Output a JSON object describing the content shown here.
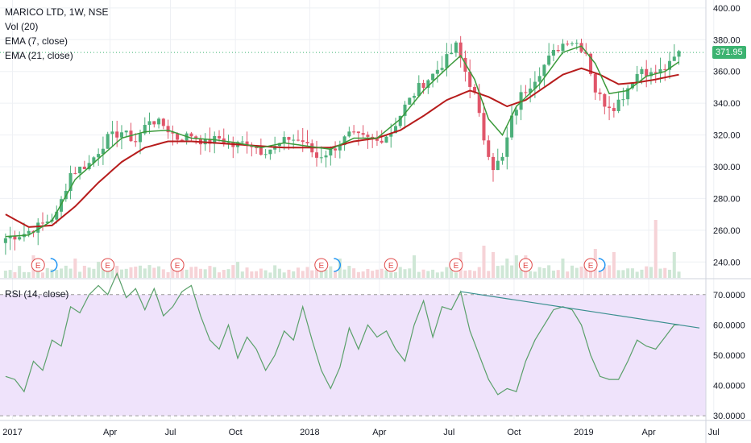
{
  "legend": {
    "symbol": "MARICO LTD, 1W, NSE",
    "vol": "Vol (20)",
    "ema7": "EMA (7, close)",
    "ema21": "EMA (21, close)"
  },
  "rsi_label": "RSI (14, close)",
  "last_price": "371.95",
  "colors": {
    "up": "#4caf7a",
    "down": "#e0566a",
    "ema7": "#3a9a3a",
    "ema21": "#b71c1c",
    "rsi_line": "#5aa06a",
    "rsi_band": "#efe3fb",
    "trendline": "#3a8f8f",
    "vol_up": "#cfe7d6",
    "vol_down": "#f6d3d7",
    "earnings": "#e04a4a",
    "dividend": "#2196f3",
    "last_line": "#3cb371"
  },
  "earnings_marker": "E",
  "chart_data": [
    {
      "type": "candlestick",
      "title": "MARICO LTD, 1W, NSE",
      "y_ticks": [
        "400.00",
        "380.00",
        "360.00",
        "340.00",
        "320.00",
        "300.00",
        "280.00",
        "260.00",
        "240.00"
      ],
      "ylim": [
        230,
        405
      ],
      "x_ticks": [
        "2017",
        "Apr",
        "Jul",
        "Oct",
        "2018",
        "Apr",
        "Jul",
        "Oct",
        "2019",
        "Apr",
        "Jul"
      ],
      "series": [
        {
          "name": "EMA (7, close)",
          "kind": "line"
        },
        {
          "name": "EMA (21, close)",
          "kind": "line"
        }
      ],
      "last_price": 371.95,
      "anchors_close": [
        [
          0,
          255
        ],
        [
          4,
          258
        ],
        [
          8,
          264
        ],
        [
          11,
          270
        ],
        [
          14,
          296
        ],
        [
          18,
          302
        ],
        [
          22,
          318
        ],
        [
          25,
          322
        ],
        [
          28,
          316
        ],
        [
          31,
          330
        ],
        [
          34,
          326
        ],
        [
          37,
          318
        ],
        [
          40,
          320
        ],
        [
          43,
          315
        ],
        [
          46,
          318
        ],
        [
          49,
          313
        ],
        [
          52,
          316
        ],
        [
          55,
          310
        ],
        [
          58,
          312
        ],
        [
          61,
          318
        ],
        [
          64,
          316
        ],
        [
          67,
          306
        ],
        [
          70,
          310
        ],
        [
          74,
          320
        ],
        [
          77,
          318
        ],
        [
          80,
          316
        ],
        [
          83,
          322
        ],
        [
          86,
          338
        ],
        [
          89,
          350
        ],
        [
          92,
          358
        ],
        [
          95,
          368
        ],
        [
          97,
          376
        ],
        [
          99,
          360
        ],
        [
          101,
          345
        ],
        [
          103,
          318
        ],
        [
          105,
          300
        ],
        [
          107,
          305
        ],
        [
          109,
          330
        ],
        [
          111,
          345
        ],
        [
          113,
          352
        ],
        [
          115,
          360
        ],
        [
          117,
          368
        ],
        [
          119,
          375
        ],
        [
          121,
          380
        ],
        [
          123,
          378
        ],
        [
          125,
          372
        ],
        [
          127,
          348
        ],
        [
          129,
          340
        ],
        [
          131,
          338
        ],
        [
          133,
          345
        ],
        [
          135,
          355
        ],
        [
          137,
          362
        ],
        [
          139,
          358
        ],
        [
          141,
          360
        ],
        [
          143,
          364
        ],
        [
          145,
          372
        ]
      ],
      "anchors_ema7": [
        [
          0,
          256
        ],
        [
          5,
          257
        ],
        [
          10,
          266
        ],
        [
          15,
          292
        ],
        [
          20,
          305
        ],
        [
          25,
          318
        ],
        [
          30,
          322
        ],
        [
          35,
          323
        ],
        [
          40,
          318
        ],
        [
          45,
          317
        ],
        [
          50,
          315
        ],
        [
          55,
          312
        ],
        [
          60,
          315
        ],
        [
          65,
          313
        ],
        [
          70,
          311
        ],
        [
          75,
          318
        ],
        [
          80,
          318
        ],
        [
          85,
          330
        ],
        [
          90,
          348
        ],
        [
          95,
          362
        ],
        [
          98,
          370
        ],
        [
          101,
          355
        ],
        [
          104,
          330
        ],
        [
          107,
          320
        ],
        [
          110,
          338
        ],
        [
          115,
          352
        ],
        [
          120,
          372
        ],
        [
          124,
          376
        ],
        [
          127,
          365
        ],
        [
          130,
          346
        ],
        [
          134,
          348
        ],
        [
          138,
          357
        ],
        [
          142,
          360
        ],
        [
          145,
          366
        ]
      ],
      "anchors_ema21": [
        [
          0,
          270
        ],
        [
          5,
          262
        ],
        [
          10,
          263
        ],
        [
          15,
          275
        ],
        [
          20,
          290
        ],
        [
          25,
          303
        ],
        [
          30,
          312
        ],
        [
          35,
          316
        ],
        [
          40,
          316
        ],
        [
          45,
          315
        ],
        [
          50,
          314
        ],
        [
          55,
          313
        ],
        [
          60,
          312
        ],
        [
          65,
          312
        ],
        [
          70,
          312
        ],
        [
          75,
          316
        ],
        [
          80,
          318
        ],
        [
          85,
          323
        ],
        [
          90,
          332
        ],
        [
          95,
          342
        ],
        [
          100,
          348
        ],
        [
          104,
          344
        ],
        [
          108,
          338
        ],
        [
          112,
          342
        ],
        [
          116,
          350
        ],
        [
          120,
          358
        ],
        [
          124,
          362
        ],
        [
          128,
          358
        ],
        [
          132,
          352
        ],
        [
          136,
          353
        ],
        [
          140,
          355
        ],
        [
          145,
          358
        ]
      ],
      "volume_spikes": [
        [
          6,
          0.35
        ],
        [
          15,
          0.3
        ],
        [
          20,
          0.25
        ],
        [
          50,
          0.25
        ],
        [
          72,
          0.3
        ],
        [
          88,
          0.35
        ],
        [
          98,
          0.4
        ],
        [
          103,
          0.5
        ],
        [
          105,
          0.4
        ],
        [
          108,
          0.3
        ],
        [
          110,
          0.35
        ],
        [
          112,
          0.35
        ],
        [
          120,
          0.3
        ],
        [
          127,
          0.45
        ],
        [
          131,
          0.4
        ],
        [
          140,
          0.9
        ],
        [
          144,
          0.4
        ]
      ],
      "earnings_events": [
        7,
        22,
        37,
        68,
        83,
        97,
        112,
        126
      ],
      "dividend_events": [
        9,
        70,
        127
      ]
    },
    {
      "type": "line",
      "title": "RSI (14, close)",
      "y_ticks": [
        "70.0000",
        "60.0000",
        "50.0000",
        "40.0000",
        "30.0000"
      ],
      "ylim": [
        29,
        75
      ],
      "band": [
        30,
        70
      ],
      "rsi_anchors": [
        [
          0,
          43
        ],
        [
          2,
          42
        ],
        [
          4,
          38
        ],
        [
          6,
          48
        ],
        [
          8,
          45
        ],
        [
          10,
          55
        ],
        [
          12,
          53
        ],
        [
          14,
          66
        ],
        [
          16,
          64
        ],
        [
          18,
          70
        ],
        [
          20,
          73
        ],
        [
          22,
          70
        ],
        [
          24,
          77
        ],
        [
          26,
          69
        ],
        [
          28,
          72
        ],
        [
          30,
          65
        ],
        [
          32,
          72
        ],
        [
          34,
          63
        ],
        [
          36,
          66
        ],
        [
          38,
          71
        ],
        [
          40,
          73
        ],
        [
          42,
          63
        ],
        [
          44,
          55
        ],
        [
          46,
          52
        ],
        [
          48,
          60
        ],
        [
          50,
          49
        ],
        [
          52,
          56
        ],
        [
          54,
          52
        ],
        [
          56,
          45
        ],
        [
          58,
          50
        ],
        [
          60,
          58
        ],
        [
          62,
          55
        ],
        [
          64,
          66
        ],
        [
          66,
          55
        ],
        [
          68,
          45
        ],
        [
          70,
          39
        ],
        [
          72,
          46
        ],
        [
          74,
          59
        ],
        [
          76,
          52
        ],
        [
          78,
          60
        ],
        [
          80,
          56
        ],
        [
          82,
          58
        ],
        [
          84,
          52
        ],
        [
          86,
          48
        ],
        [
          88,
          60
        ],
        [
          90,
          68
        ],
        [
          92,
          56
        ],
        [
          94,
          66
        ],
        [
          96,
          65
        ],
        [
          98,
          71
        ],
        [
          100,
          58
        ],
        [
          102,
          50
        ],
        [
          104,
          42
        ],
        [
          106,
          37
        ],
        [
          108,
          39
        ],
        [
          110,
          38
        ],
        [
          112,
          48
        ],
        [
          114,
          55
        ],
        [
          116,
          60
        ],
        [
          118,
          65
        ],
        [
          120,
          66
        ],
        [
          122,
          65
        ],
        [
          124,
          60
        ],
        [
          126,
          50
        ],
        [
          128,
          43
        ],
        [
          130,
          42
        ],
        [
          132,
          42
        ],
        [
          134,
          48
        ],
        [
          136,
          55
        ],
        [
          138,
          53
        ],
        [
          140,
          52
        ],
        [
          142,
          56
        ],
        [
          144,
          60
        ]
      ],
      "trendline": [
        [
          98,
          71
        ],
        [
          152,
          59
        ]
      ]
    }
  ]
}
